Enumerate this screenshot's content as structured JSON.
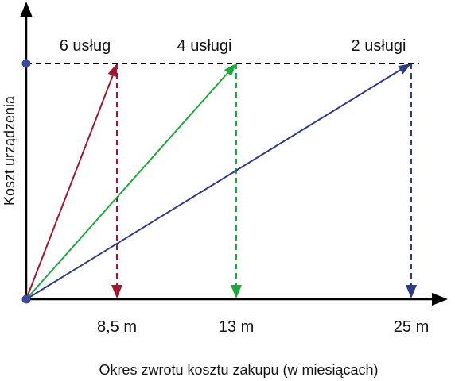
{
  "axes": {
    "x_label": "Okres zwrotu kosztu zakupu (w miesiącach)",
    "y_label": "Koszt urządzenia"
  },
  "options": [
    {
      "label": "6 usług",
      "period": "8,5 m"
    },
    {
      "label": "4 usługi",
      "period": "13 m"
    },
    {
      "label": "2 usługi",
      "period": "25 m"
    }
  ]
}
